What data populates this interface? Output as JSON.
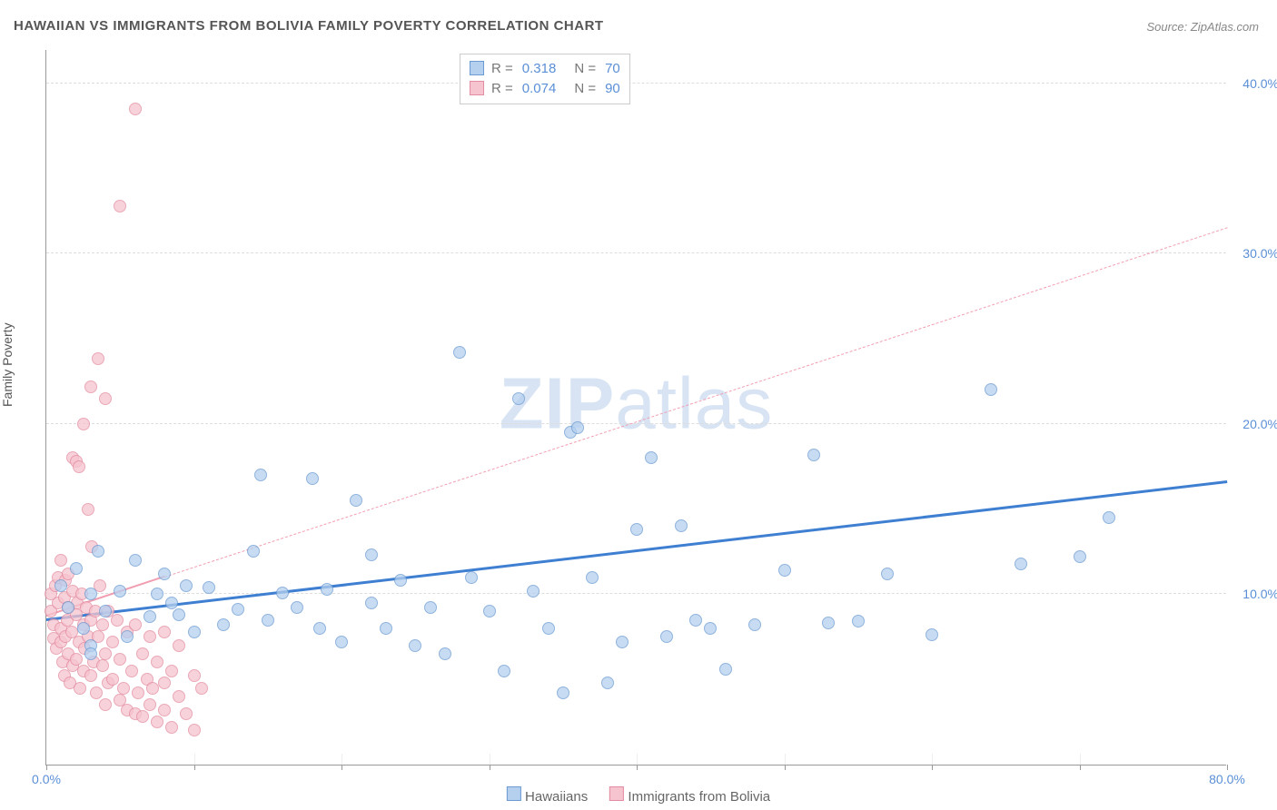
{
  "title": "HAWAIIAN VS IMMIGRANTS FROM BOLIVIA FAMILY POVERTY CORRELATION CHART",
  "source": "Source: ZipAtlas.com",
  "ylabel": "Family Poverty",
  "watermark_a": "ZIP",
  "watermark_b": "atlas",
  "chart": {
    "type": "scatter",
    "xlim": [
      0,
      80
    ],
    "ylim": [
      0,
      42
    ],
    "xtick_positions": [
      0,
      10,
      20,
      30,
      40,
      50,
      60,
      70,
      80
    ],
    "xtick_labels": {
      "0": "0.0%",
      "80": "80.0%"
    },
    "ytick_positions": [
      10,
      20,
      30,
      40
    ],
    "ytick_labels": {
      "10": "10.0%",
      "20": "20.0%",
      "30": "30.0%",
      "40": "40.0%"
    },
    "grid_y": [
      10,
      20,
      30,
      40
    ],
    "grid_color": "#dddddd",
    "background": "#ffffff",
    "point_radius": 7,
    "series": {
      "hawaiians": {
        "label": "Hawaiians",
        "fill": "#b5cfef",
        "stroke": "#6b9bd1",
        "regression": {
          "x1": 0,
          "y1": 8.4,
          "x2": 80,
          "y2": 16.5,
          "width": 3,
          "dash": "none",
          "color": "#3f7fd1"
        },
        "stats": {
          "R": "0.318",
          "N": "70"
        },
        "points": [
          [
            1,
            10.5
          ],
          [
            1.5,
            9.2
          ],
          [
            2,
            11.5
          ],
          [
            2.5,
            8
          ],
          [
            3,
            7
          ],
          [
            3,
            10
          ],
          [
            3.5,
            12.5
          ],
          [
            4,
            9
          ],
          [
            5,
            10.2
          ],
          [
            5.5,
            7.5
          ],
          [
            6,
            12
          ],
          [
            7,
            8.7
          ],
          [
            7.5,
            10
          ],
          [
            8,
            11.2
          ],
          [
            8.5,
            9.5
          ],
          [
            9,
            8.8
          ],
          [
            9.5,
            10.5
          ],
          [
            10,
            7.8
          ],
          [
            11,
            10.4
          ],
          [
            12,
            8.2
          ],
          [
            13,
            9.1
          ],
          [
            14,
            12.5
          ],
          [
            14.5,
            17
          ],
          [
            15,
            8.5
          ],
          [
            16,
            10.1
          ],
          [
            17,
            9.2
          ],
          [
            18,
            16.8
          ],
          [
            18.5,
            8
          ],
          [
            19,
            10.3
          ],
          [
            20,
            7.2
          ],
          [
            21,
            15.5
          ],
          [
            22,
            9.5
          ],
          [
            22,
            12.3
          ],
          [
            23,
            8
          ],
          [
            24,
            10.8
          ],
          [
            25,
            7
          ],
          [
            26,
            9.2
          ],
          [
            27,
            6.5
          ],
          [
            28,
            24.2
          ],
          [
            28.8,
            11
          ],
          [
            30,
            9
          ],
          [
            31,
            5.5
          ],
          [
            32,
            21.5
          ],
          [
            33,
            10.2
          ],
          [
            34,
            8
          ],
          [
            35,
            4.2
          ],
          [
            35.5,
            19.5
          ],
          [
            36,
            19.8
          ],
          [
            37,
            11
          ],
          [
            38,
            4.8
          ],
          [
            39,
            7.2
          ],
          [
            40,
            13.8
          ],
          [
            41,
            18
          ],
          [
            42,
            7.5
          ],
          [
            43,
            14
          ],
          [
            44,
            8.5
          ],
          [
            45,
            8
          ],
          [
            46,
            5.6
          ],
          [
            48,
            8.2
          ],
          [
            50,
            11.4
          ],
          [
            52,
            18.2
          ],
          [
            53,
            8.3
          ],
          [
            55,
            8.4
          ],
          [
            57,
            11.2
          ],
          [
            60,
            7.6
          ],
          [
            64,
            22
          ],
          [
            66,
            11.8
          ],
          [
            70,
            12.2
          ],
          [
            72,
            14.5
          ],
          [
            3,
            6.5
          ]
        ]
      },
      "bolivia": {
        "label": "Immigrants from Bolivia",
        "fill": "#f6c4ce",
        "stroke": "#e38ba0",
        "regression": {
          "x1": 0,
          "y1": 8.7,
          "x2": 80,
          "y2": 31.5,
          "width": 1.2,
          "dash": "6 5",
          "color": "#f29eb1",
          "solid_to_x": 8,
          "solid_to_y": 11
        },
        "stats": {
          "R": "0.074",
          "N": "90"
        },
        "points": [
          [
            0.3,
            9
          ],
          [
            0.3,
            10
          ],
          [
            0.5,
            8.2
          ],
          [
            0.5,
            7.4
          ],
          [
            0.6,
            10.5
          ],
          [
            0.7,
            6.8
          ],
          [
            0.8,
            9.5
          ],
          [
            0.8,
            11
          ],
          [
            1,
            8
          ],
          [
            1,
            7.2
          ],
          [
            1,
            12
          ],
          [
            1.1,
            6
          ],
          [
            1.2,
            9.8
          ],
          [
            1.2,
            5.2
          ],
          [
            1.3,
            10.8
          ],
          [
            1.3,
            7.5
          ],
          [
            1.4,
            8.5
          ],
          [
            1.5,
            9.2
          ],
          [
            1.5,
            6.5
          ],
          [
            1.5,
            11.2
          ],
          [
            1.6,
            4.8
          ],
          [
            1.7,
            7.8
          ],
          [
            1.8,
            10.2
          ],
          [
            1.8,
            5.8
          ],
          [
            1.8,
            18
          ],
          [
            2,
            8.8
          ],
          [
            2,
            6.2
          ],
          [
            2,
            17.8
          ],
          [
            2.1,
            9.5
          ],
          [
            2.2,
            7.2
          ],
          [
            2.2,
            17.5
          ],
          [
            2.3,
            4.5
          ],
          [
            2.4,
            10
          ],
          [
            2.5,
            8.2
          ],
          [
            2.5,
            5.5
          ],
          [
            2.5,
            20
          ],
          [
            2.6,
            6.8
          ],
          [
            2.7,
            9.2
          ],
          [
            2.8,
            7.5
          ],
          [
            2.8,
            15
          ],
          [
            3,
            8.5
          ],
          [
            3,
            5.2
          ],
          [
            3,
            22.2
          ],
          [
            3.1,
            12.8
          ],
          [
            3.2,
            6
          ],
          [
            3.3,
            9
          ],
          [
            3.4,
            4.2
          ],
          [
            3.5,
            7.5
          ],
          [
            3.5,
            23.8
          ],
          [
            3.6,
            10.5
          ],
          [
            3.8,
            5.8
          ],
          [
            3.8,
            8.2
          ],
          [
            4,
            6.5
          ],
          [
            4,
            3.5
          ],
          [
            4,
            21.5
          ],
          [
            4.2,
            9
          ],
          [
            4.2,
            4.8
          ],
          [
            4.5,
            7.2
          ],
          [
            4.5,
            5
          ],
          [
            4.8,
            8.5
          ],
          [
            5,
            3.8
          ],
          [
            5,
            6.2
          ],
          [
            5,
            32.8
          ],
          [
            5.2,
            4.5
          ],
          [
            5.5,
            7.8
          ],
          [
            5.5,
            3.2
          ],
          [
            5.8,
            5.5
          ],
          [
            6,
            8.2
          ],
          [
            6,
            3
          ],
          [
            6,
            38.5
          ],
          [
            6.2,
            4.2
          ],
          [
            6.5,
            6.5
          ],
          [
            6.5,
            2.8
          ],
          [
            6.8,
            5
          ],
          [
            7,
            7.5
          ],
          [
            7,
            3.5
          ],
          [
            7.2,
            4.5
          ],
          [
            7.5,
            6
          ],
          [
            7.5,
            2.5
          ],
          [
            8,
            4.8
          ],
          [
            8,
            7.8
          ],
          [
            8,
            3.2
          ],
          [
            8.5,
            5.5
          ],
          [
            8.5,
            2.2
          ],
          [
            9,
            4
          ],
          [
            9,
            7
          ],
          [
            9.5,
            3
          ],
          [
            10,
            5.2
          ],
          [
            10,
            2
          ],
          [
            10.5,
            4.5
          ]
        ]
      }
    }
  },
  "legend": {
    "stats_labels": {
      "R": "R =",
      "N": "N ="
    }
  }
}
